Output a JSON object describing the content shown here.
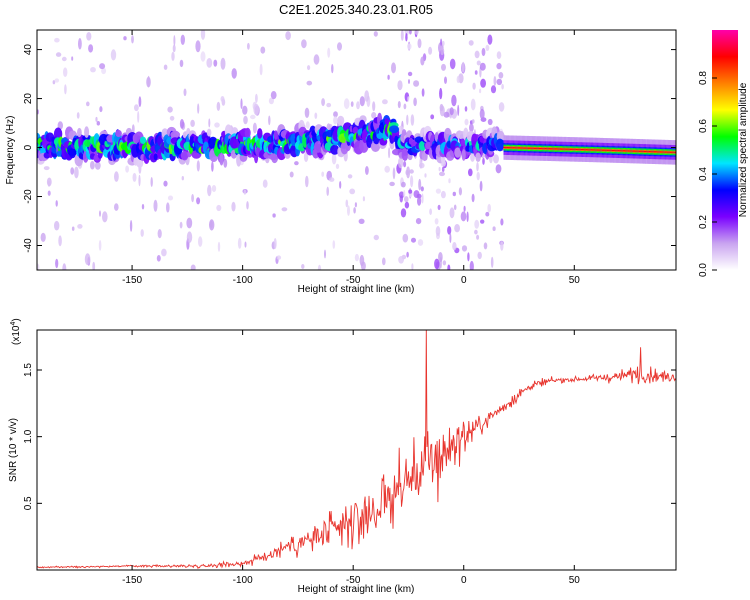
{
  "chart_data": [
    {
      "type": "heatmap",
      "title": "C2E1.2025.340.23.01.R05",
      "xlabel": "Height of straight line (km)",
      "ylabel": "Frequency (Hz)",
      "xlim": [
        -193,
        96
      ],
      "ylim": [
        -50,
        48
      ],
      "xticks": [
        -150,
        -100,
        -50,
        0,
        50
      ],
      "yticks": [
        -40,
        -20,
        0,
        20,
        40
      ],
      "colorbar": {
        "label": "Normalized spectral amplitude",
        "range": [
          0,
          1
        ],
        "ticks": [
          "0.0",
          "0.2",
          "0.4",
          "0.6",
          "0.8"
        ],
        "colors": [
          "#ffffff",
          "#c9a4f0",
          "#7a00ff",
          "#0000ff",
          "#00e5ff",
          "#00ff00",
          "#ffff00",
          "#ff8000",
          "#ff0000",
          "#ff00aa"
        ]
      },
      "features": [
        {
          "segment": "-193 to -30 km",
          "trend": "dominant frequency rises from about 0 Hz to about 8 Hz",
          "amplitude": 0.35
        },
        {
          "segment": "-30 to 18 km",
          "trend": "broad scatter, about -35 to 35 Hz, centred near 0 Hz",
          "amplitude": 0.25
        },
        {
          "segment": "18 to 96 km",
          "trend": "narrow band at about 0 Hz, slowly falling to about -2 Hz",
          "amplitude": 0.9
        }
      ]
    },
    {
      "type": "line",
      "title": "",
      "xlabel": "Height of straight line (km)",
      "ylabel": "SNR (10 * v/v)",
      "yscale_note": "(x10",
      "yscale_exp": "4",
      "xlim": [
        -193,
        96
      ],
      "ylim": [
        0,
        1.8
      ],
      "xticks": [
        -150,
        -100,
        -50,
        0,
        50
      ],
      "yticks": [
        0.5,
        1.0,
        1.5
      ],
      "series": [
        {
          "color": "#e8352e",
          "x": [
            -193,
            -150,
            -120,
            -100,
            -90,
            -80,
            -70,
            -60,
            -50,
            -40,
            -30,
            -20,
            -15,
            -10,
            -5,
            0,
            10,
            20,
            30,
            40,
            50,
            60,
            70,
            80,
            90,
            96
          ],
          "y": [
            0.02,
            0.03,
            0.03,
            0.05,
            0.1,
            0.18,
            0.22,
            0.28,
            0.35,
            0.45,
            0.6,
            0.75,
            0.8,
            0.85,
            0.95,
            1.0,
            1.12,
            1.25,
            1.38,
            1.42,
            1.43,
            1.44,
            1.45,
            1.48,
            1.45,
            1.45
          ],
          "amplitude": [
            0.01,
            0.01,
            0.02,
            0.04,
            0.08,
            0.12,
            0.18,
            0.22,
            0.28,
            0.35,
            0.4,
            0.45,
            0.5,
            0.4,
            0.3,
            0.2,
            0.12,
            0.08,
            0.05,
            0.04,
            0.03,
            0.04,
            0.06,
            0.12,
            0.08,
            0.05
          ]
        }
      ],
      "notable_points": [
        {
          "x": -17,
          "y": 1.82,
          "label": ""
        },
        {
          "x": 80,
          "y": 1.67,
          "label": ""
        }
      ]
    }
  ]
}
